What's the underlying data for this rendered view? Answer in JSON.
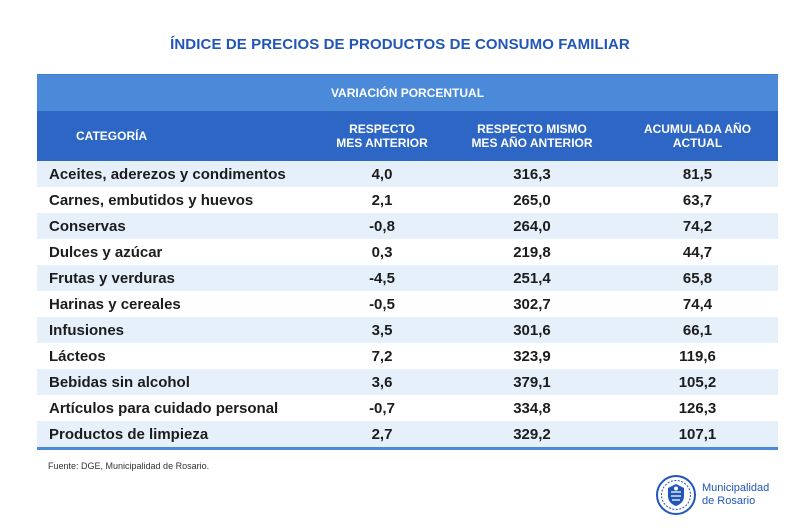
{
  "title": "ÍNDICE DE PRECIOS DE PRODUCTOS DE CONSUMO FAMILIAR",
  "table": {
    "group_header": "VARIACIÓN PORCENTUAL",
    "columns": {
      "category": "CATEGORÍA",
      "col1_line1": "RESPECTO",
      "col1_line2": "MES ANTERIOR",
      "col2_line1": "RESPECTO MISMO",
      "col2_line2": "MES AÑO ANTERIOR",
      "col3_line1": "ACUMULADA AÑO",
      "col3_line2": "ACTUAL"
    },
    "rows": [
      {
        "category": "Aceites, aderezos y condimentos",
        "mes_anterior": "4,0",
        "mes_ano_anterior": "316,3",
        "acumulada": "81,5"
      },
      {
        "category": "Carnes, embutidos y huevos",
        "mes_anterior": "2,1",
        "mes_ano_anterior": "265,0",
        "acumulada": "63,7"
      },
      {
        "category": "Conservas",
        "mes_anterior": "-0,8",
        "mes_ano_anterior": "264,0",
        "acumulada": "74,2"
      },
      {
        "category": "Dulces y azúcar",
        "mes_anterior": "0,3",
        "mes_ano_anterior": "219,8",
        "acumulada": "44,7"
      },
      {
        "category": "Frutas y verduras",
        "mes_anterior": "-4,5",
        "mes_ano_anterior": "251,4",
        "acumulada": "65,8"
      },
      {
        "category": "Harinas y cereales",
        "mes_anterior": "-0,5",
        "mes_ano_anterior": "302,7",
        "acumulada": "74,4"
      },
      {
        "category": "Infusiones",
        "mes_anterior": "3,5",
        "mes_ano_anterior": "301,6",
        "acumulada": "66,1"
      },
      {
        "category": "Lácteos",
        "mes_anterior": "7,2",
        "mes_ano_anterior": "323,9",
        "acumulada": "119,6"
      },
      {
        "category": "Bebidas sin alcohol",
        "mes_anterior": "3,6",
        "mes_ano_anterior": "379,1",
        "acumulada": "105,2"
      },
      {
        "category": "Artículos para cuidado personal",
        "mes_anterior": "-0,7",
        "mes_ano_anterior": "334,8",
        "acumulada": "126,3"
      },
      {
        "category": "Productos de limpieza",
        "mes_anterior": "2,7",
        "mes_ano_anterior": "329,2",
        "acumulada": "107,1"
      }
    ]
  },
  "source": "Fuente: DGE, Municipalidad de Rosario.",
  "logo": {
    "icon": "rosario-seal-icon",
    "line1": "Municipalidad",
    "line2": "de Rosario"
  },
  "colors": {
    "title": "#2156b8",
    "group_header_bg": "#4a8ad8",
    "header_bg": "#2d66c4",
    "row_alt_bg": "#e6f0fa"
  }
}
